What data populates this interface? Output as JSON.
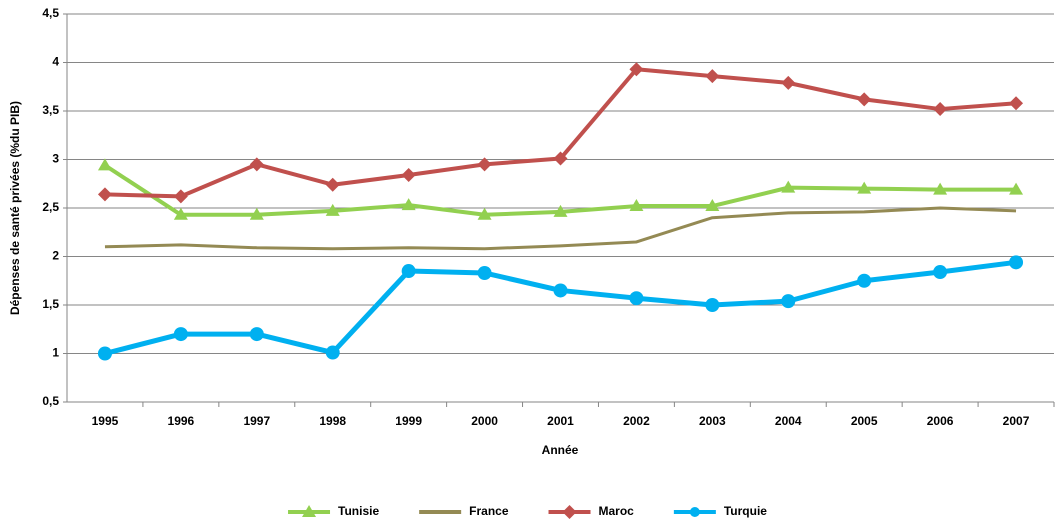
{
  "chart_data": {
    "type": "line",
    "categories": [
      "1995",
      "1996",
      "1997",
      "1998",
      "1999",
      "2000",
      "2001",
      "2002",
      "2003",
      "2004",
      "2005",
      "2006",
      "2007"
    ],
    "series": [
      {
        "name": "Tunisie",
        "color": "#92d050",
        "marker": "triangle",
        "values": [
          2.94,
          2.43,
          2.43,
          2.47,
          2.53,
          2.43,
          2.46,
          2.52,
          2.52,
          2.71,
          2.7,
          2.69,
          2.69
        ]
      },
      {
        "name": "France",
        "color": "#948a54",
        "marker": "none",
        "values": [
          2.1,
          2.12,
          2.09,
          2.08,
          2.09,
          2.08,
          2.11,
          2.15,
          2.4,
          2.45,
          2.46,
          2.5,
          2.47
        ]
      },
      {
        "name": "Maroc",
        "color": "#c0504d",
        "marker": "diamond",
        "values": [
          2.64,
          2.62,
          2.95,
          2.74,
          2.84,
          2.95,
          3.01,
          3.93,
          3.86,
          3.79,
          3.62,
          3.52,
          3.58
        ]
      },
      {
        "name": "Turquie",
        "color": "#00b0f0",
        "marker": "circle",
        "values": [
          1.0,
          1.2,
          1.2,
          1.01,
          1.85,
          1.83,
          1.65,
          1.57,
          1.5,
          1.54,
          1.75,
          1.84,
          1.94
        ]
      }
    ],
    "ylim": [
      0.5,
      4.5
    ],
    "yticks": [
      {
        "value": 0.5,
        "label": "0,5"
      },
      1,
      {
        "value": 1.5,
        "label": "1,5"
      },
      2,
      {
        "value": 2.5,
        "label": "2,5"
      },
      3,
      {
        "value": 3.5,
        "label": "3,5"
      },
      4,
      {
        "value": 4.5,
        "label": "4,5"
      }
    ],
    "grid": true,
    "legend": "bottom",
    "x_label": "Année",
    "y_label": "Dépenses de santé privées (%du PIB)"
  }
}
